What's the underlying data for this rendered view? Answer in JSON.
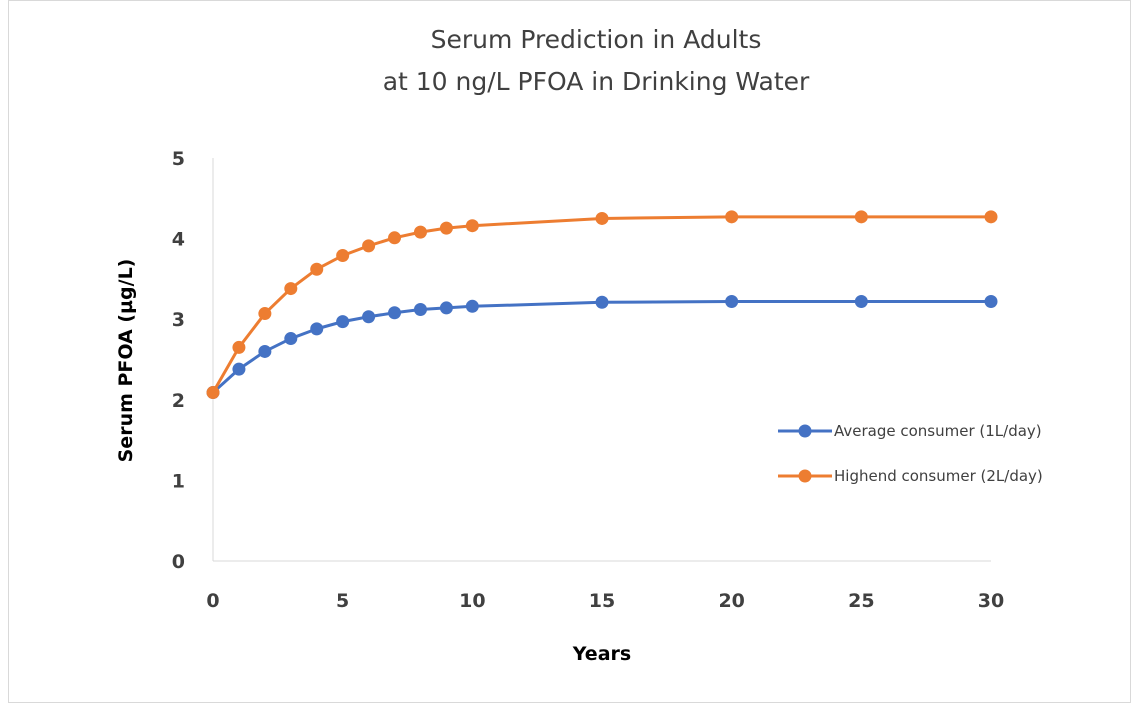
{
  "chart_data": {
    "type": "line",
    "title": [
      "Serum Prediction in Adults",
      "at 10 ng/L PFOA in Drinking Water"
    ],
    "xlabel": "Years",
    "ylabel": "Serum PFOA  (µg/L)",
    "xlim": [
      0,
      30
    ],
    "ylim": [
      0,
      5
    ],
    "x_ticks": [
      0,
      5,
      10,
      15,
      20,
      25,
      30
    ],
    "y_ticks": [
      0,
      1,
      2,
      3,
      4,
      5
    ],
    "grid": false,
    "legend_position": "right",
    "x": [
      0,
      1,
      2,
      3,
      4,
      5,
      6,
      7,
      8,
      9,
      10,
      15,
      20,
      25,
      30
    ],
    "series": [
      {
        "name": "Average consumer (1L/day)",
        "color": "#4472c4",
        "values": [
          2.09,
          2.38,
          2.6,
          2.76,
          2.88,
          2.97,
          3.03,
          3.08,
          3.12,
          3.14,
          3.16,
          3.21,
          3.22,
          3.22,
          3.22
        ]
      },
      {
        "name": "Highend consumer (2L/day)",
        "color": "#ed7d31",
        "values": [
          2.09,
          2.65,
          3.07,
          3.38,
          3.62,
          3.79,
          3.91,
          4.01,
          4.08,
          4.13,
          4.16,
          4.25,
          4.27,
          4.27,
          4.27
        ]
      }
    ]
  }
}
